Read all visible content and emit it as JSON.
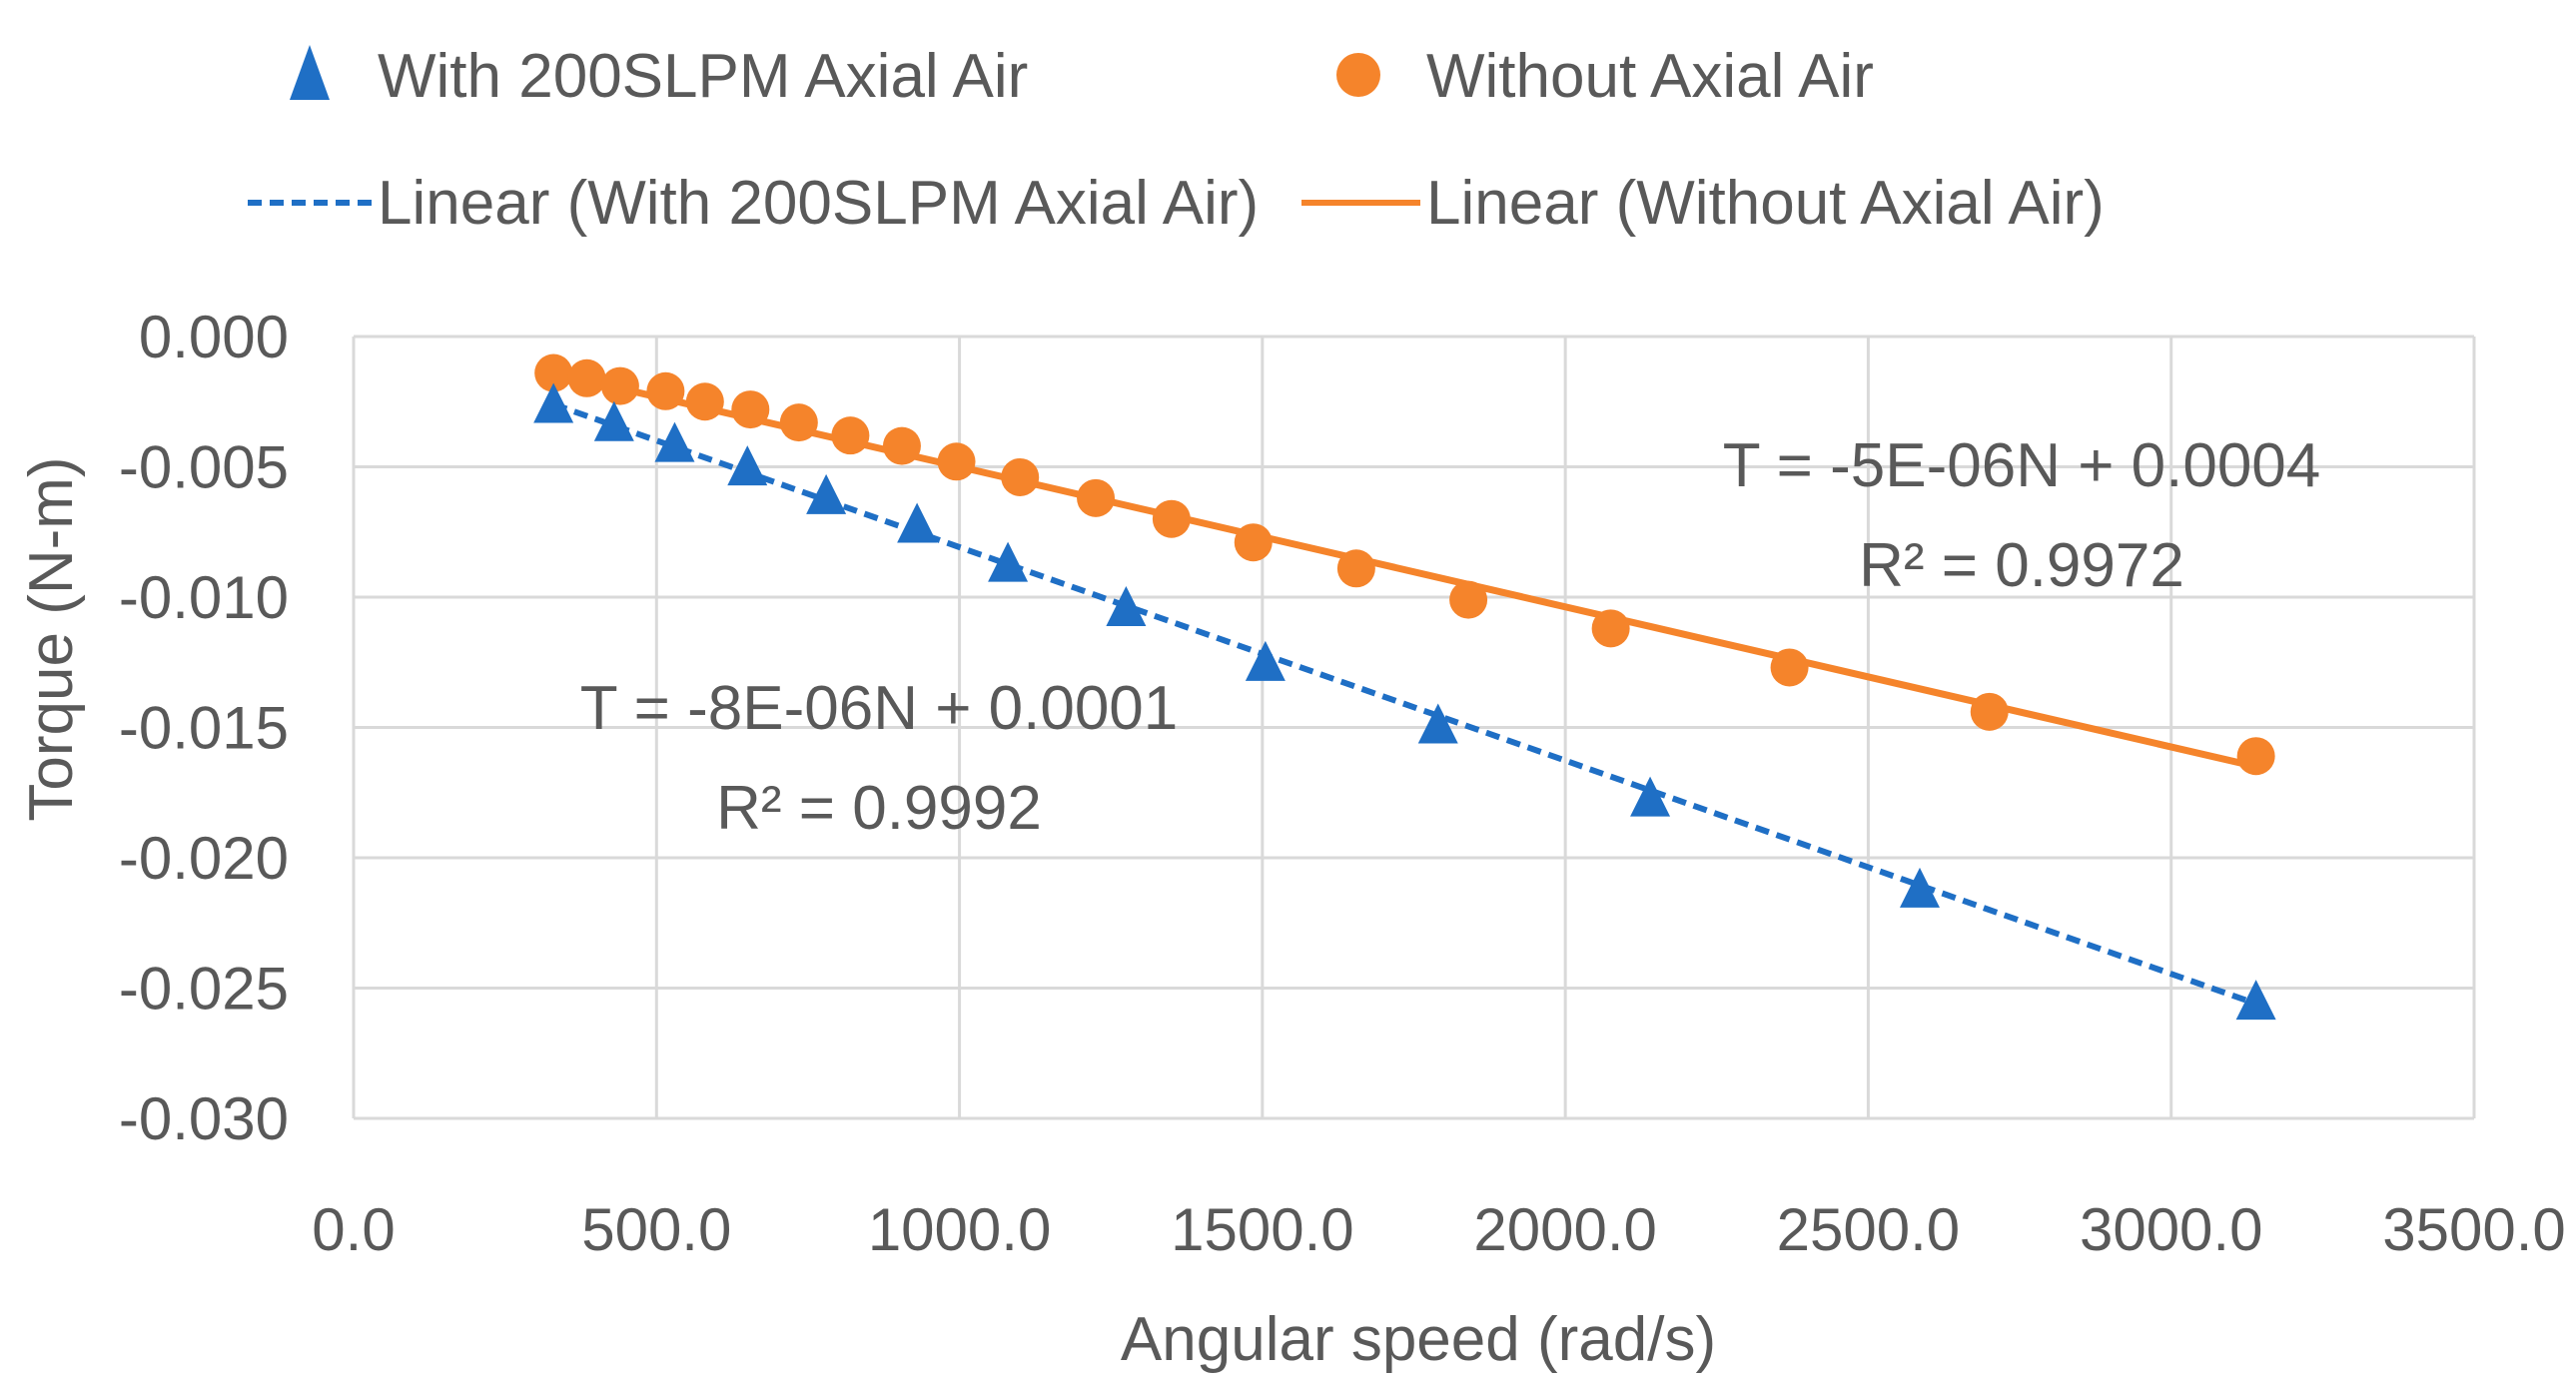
{
  "chart_data": {
    "type": "scatter",
    "title": "",
    "xlabel": "Angular speed  (rad/s)",
    "ylabel": "Torque  (N-m)",
    "xlim": [
      0,
      3500
    ],
    "ylim": [
      -0.03,
      0.0
    ],
    "x_ticks": [
      0,
      500,
      1000,
      1500,
      2000,
      2500,
      3000,
      3500
    ],
    "x_tick_labels": [
      "0.0",
      "500.0",
      "1000.0",
      "1500.0",
      "2000.0",
      "2500.0",
      "3000.0",
      "3500.0"
    ],
    "y_ticks": [
      0,
      -0.005,
      -0.01,
      -0.015,
      -0.02,
      -0.025,
      -0.03
    ],
    "y_tick_labels": [
      "0.000",
      "-0.005",
      "-0.010",
      "-0.015",
      "-0.020",
      "-0.025",
      "-0.030"
    ],
    "grid": true,
    "legend_position": "top",
    "series": [
      {
        "name": "With 200SLPM Axial Air",
        "marker": "triangle",
        "color": "#1F6FC5",
        "x": [
          330,
          430,
          530,
          650,
          780,
          930,
          1080,
          1275,
          1505,
          1790,
          2140,
          2585,
          3140
        ],
        "y": [
          -0.0027,
          -0.0034,
          -0.0042,
          -0.0051,
          -0.0062,
          -0.0073,
          -0.0088,
          -0.0105,
          -0.0126,
          -0.015,
          -0.0178,
          -0.0213,
          -0.0256
        ]
      },
      {
        "name": "Without Axial Air",
        "marker": "circle",
        "color": "#F5842B",
        "x": [
          330,
          385,
          440,
          515,
          580,
          655,
          735,
          820,
          905,
          995,
          1100,
          1225,
          1350,
          1485,
          1655,
          1840,
          2075,
          2370,
          2700,
          3140
        ],
        "y": [
          -0.0014,
          -0.0016,
          -0.0019,
          -0.0021,
          -0.0025,
          -0.0028,
          -0.0033,
          -0.0038,
          -0.0042,
          -0.0048,
          -0.0054,
          -0.0062,
          -0.007,
          -0.0079,
          -0.0089,
          -0.0101,
          -0.0112,
          -0.0127,
          -0.0144,
          -0.0161
        ]
      }
    ],
    "trendlines": [
      {
        "name": "Linear (With 200SLPM Axial Air)",
        "style": "dashed",
        "color": "#1F6FC5",
        "x": [
          330,
          3140
        ],
        "y": [
          -0.0026,
          -0.0256
        ],
        "equation": "T = -8E-06N + 0.0001",
        "r2": "R² = 0.9992"
      },
      {
        "name": "Linear (Without Axial Air)",
        "style": "solid",
        "color": "#F5842B",
        "x": [
          330,
          3140
        ],
        "y": [
          -0.0014,
          -0.0165
        ],
        "equation": "T = -5E-06N + 0.0004",
        "r2": "R² = 0.9972"
      }
    ]
  }
}
